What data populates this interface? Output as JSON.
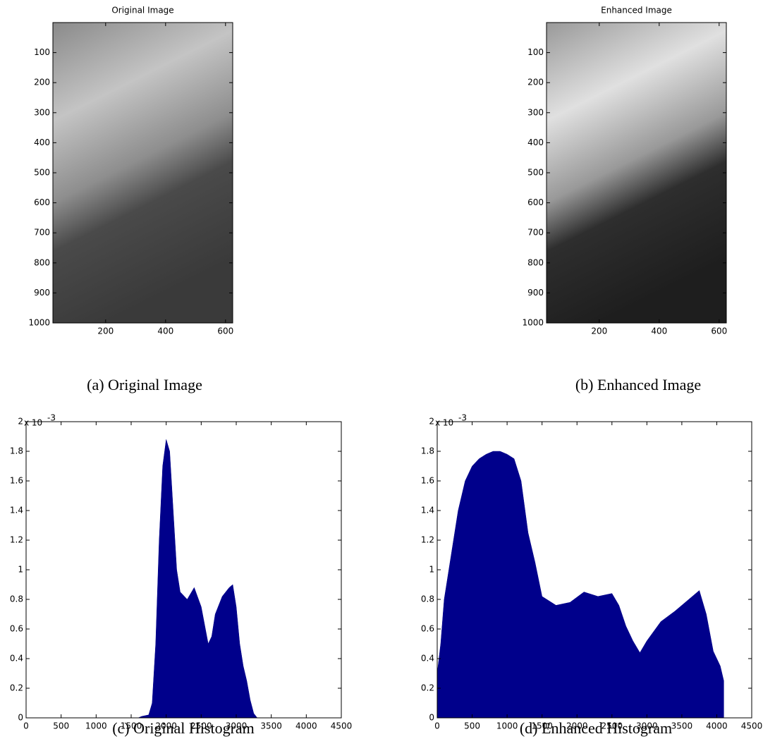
{
  "chart_data": [
    {
      "type": "image",
      "title": "Original Image",
      "caption": "(a) Original Image",
      "xlim": [
        24,
        624
      ],
      "xticks": [
        200,
        400,
        600
      ],
      "ylim": [
        0,
        1000
      ],
      "yticks": [
        100,
        200,
        300,
        400,
        500,
        600,
        700,
        800,
        900,
        1000
      ]
    },
    {
      "type": "image",
      "title": "Enhanced Image",
      "caption": "(b) Enhanced Image",
      "xlim": [
        24,
        624
      ],
      "xticks": [
        200,
        400,
        600
      ],
      "ylim": [
        0,
        1000
      ],
      "yticks": [
        100,
        200,
        300,
        400,
        500,
        600,
        700,
        800,
        900,
        1000
      ]
    },
    {
      "type": "area",
      "caption": "(c) Original Histogram",
      "color": "#00008b",
      "axis_multiplier": "x 10",
      "axis_multiplier_exponent": "-3",
      "xlim": [
        0,
        4500
      ],
      "xticks": [
        0,
        500,
        1000,
        1500,
        2000,
        2500,
        3000,
        3500,
        4000,
        4500
      ],
      "ylim": [
        0,
        2
      ],
      "yticks": [
        0,
        0.2,
        0.4,
        0.6,
        0.8,
        1,
        1.2,
        1.4,
        1.6,
        1.8,
        2
      ],
      "x": [
        1600,
        1650,
        1750,
        1800,
        1850,
        1900,
        1950,
        2000,
        2050,
        2100,
        2150,
        2200,
        2300,
        2400,
        2500,
        2600,
        2650,
        2700,
        2800,
        2900,
        2950,
        3000,
        3050,
        3100,
        3150,
        3200,
        3250,
        3300
      ],
      "values": [
        0,
        0.01,
        0.02,
        0.1,
        0.5,
        1.2,
        1.7,
        1.88,
        1.8,
        1.4,
        1.0,
        0.85,
        0.8,
        0.88,
        0.75,
        0.5,
        0.55,
        0.7,
        0.82,
        0.88,
        0.9,
        0.75,
        0.5,
        0.35,
        0.25,
        0.12,
        0.03,
        0
      ]
    },
    {
      "type": "area",
      "caption": "(d) Enhanced Histogram",
      "color": "#00008b",
      "axis_multiplier": "x 10",
      "axis_multiplier_exponent": "-3",
      "xlim": [
        0,
        4500
      ],
      "xticks": [
        0,
        500,
        1000,
        1500,
        2000,
        2500,
        3000,
        3500,
        4000,
        4500
      ],
      "ylim": [
        0,
        2
      ],
      "yticks": [
        0,
        0.2,
        0.4,
        0.6,
        0.8,
        1,
        1.2,
        1.4,
        1.6,
        1.8,
        2
      ],
      "x": [
        0,
        50,
        100,
        200,
        300,
        400,
        500,
        600,
        700,
        800,
        900,
        1000,
        1100,
        1200,
        1300,
        1400,
        1500,
        1700,
        1900,
        2100,
        2300,
        2500,
        2600,
        2700,
        2800,
        2900,
        3000,
        3200,
        3400,
        3600,
        3750,
        3850,
        3950,
        4050,
        4100
      ],
      "values": [
        0.3,
        0.5,
        0.8,
        1.1,
        1.4,
        1.6,
        1.7,
        1.75,
        1.78,
        1.8,
        1.8,
        1.78,
        1.75,
        1.6,
        1.25,
        1.05,
        0.82,
        0.76,
        0.78,
        0.85,
        0.82,
        0.84,
        0.76,
        0.62,
        0.52,
        0.44,
        0.52,
        0.65,
        0.72,
        0.8,
        0.86,
        0.7,
        0.45,
        0.35,
        0.25
      ]
    }
  ]
}
